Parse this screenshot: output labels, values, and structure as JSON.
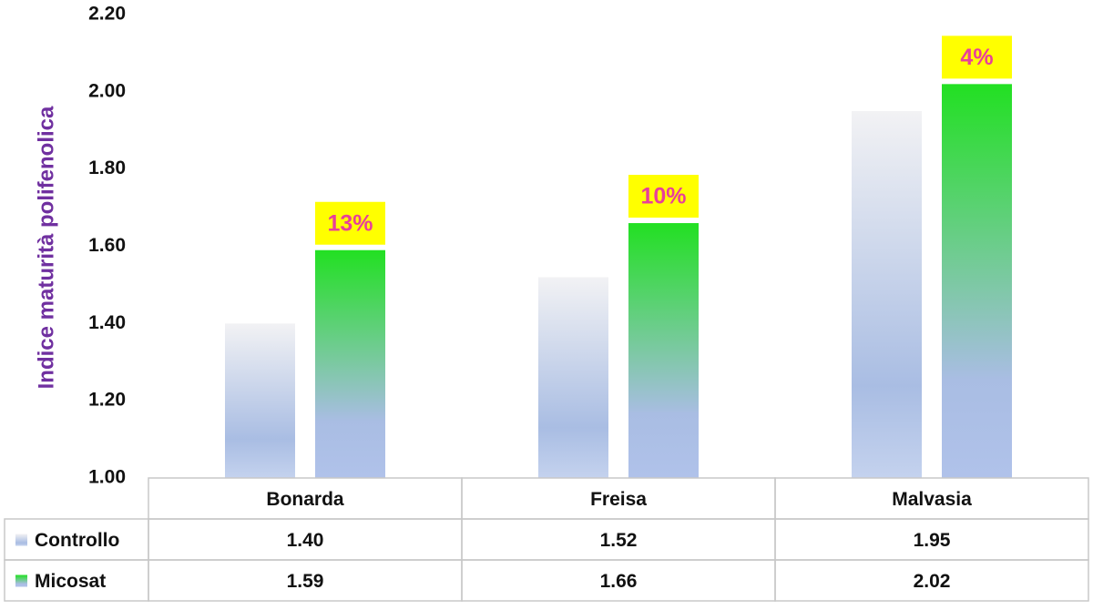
{
  "chart_data": {
    "type": "bar",
    "y_label": "Indice maturità polifenolica",
    "categories": [
      "Bonarda",
      "Freisa",
      "Malvasia"
    ],
    "series": [
      {
        "name": "Controllo",
        "color": "#a9bde3",
        "values": [
          1.4,
          1.52,
          1.95
        ],
        "value_labels": [
          "1.40",
          "1.52",
          "1.95"
        ]
      },
      {
        "name": "Micosat",
        "color": "#22e022",
        "values": [
          1.59,
          1.66,
          2.02
        ],
        "value_labels": [
          "1.59",
          "1.66",
          "2.02"
        ],
        "annotations": [
          "13%",
          "10%",
          "4%"
        ]
      }
    ],
    "ylim": [
      1,
      2.2
    ],
    "yticks": [
      {
        "value": 1,
        "label": "1.00"
      },
      {
        "value": 1.2,
        "label": "1.20"
      },
      {
        "value": 1.4,
        "label": "1.40"
      },
      {
        "value": 1.6,
        "label": "1.60"
      },
      {
        "value": 1.8,
        "label": "1.80"
      },
      {
        "value": 2,
        "label": "2.00"
      },
      {
        "value": 2.2,
        "label": "2.20"
      }
    ],
    "data_table": true
  }
}
